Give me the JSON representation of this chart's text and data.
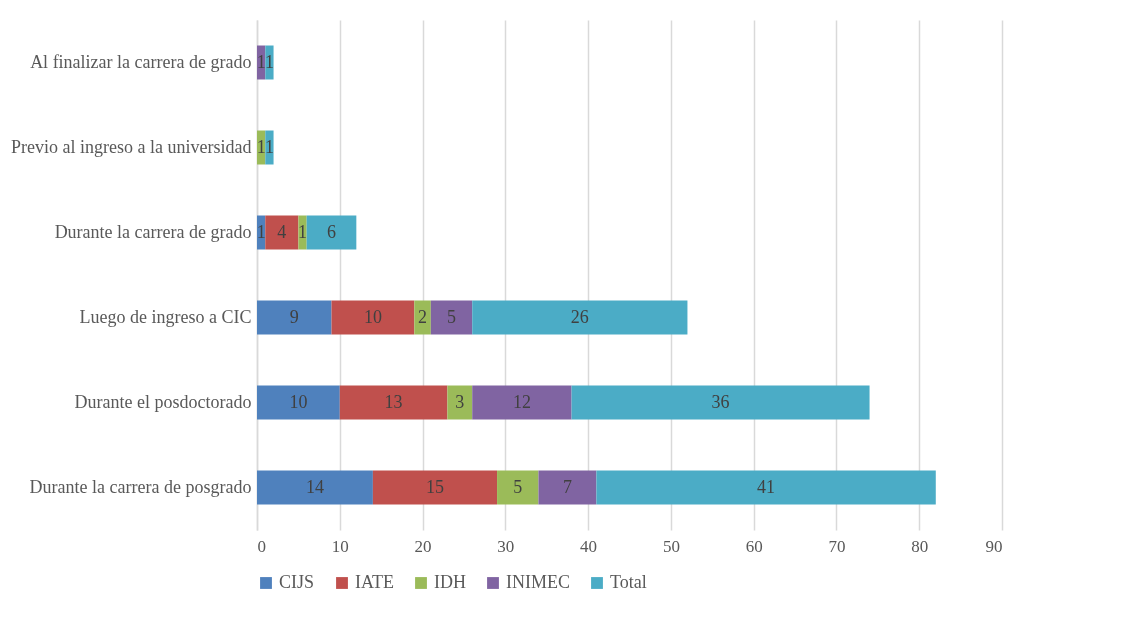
{
  "chart_data": {
    "type": "bar",
    "orientation": "horizontal",
    "stacked": true,
    "data_labels": true,
    "grid": "x",
    "legend": "bottom",
    "categories": [
      "Al finalizar la carrera de grado",
      "Previo al ingreso a la universidad",
      "Durante la carrera de grado",
      "Luego de ingreso a CIC",
      "Durante el posdoctorado",
      "Durante la carrera de posgrado"
    ],
    "series": [
      {
        "name": "CIJS",
        "color": "#4f81bd",
        "values": [
          null,
          null,
          1,
          9,
          10,
          14
        ]
      },
      {
        "name": "IATE",
        "color": "#c0504d",
        "values": [
          null,
          null,
          4,
          10,
          13,
          15
        ]
      },
      {
        "name": "IDH",
        "color": "#9bbb59",
        "values": [
          null,
          1,
          1,
          2,
          3,
          5
        ]
      },
      {
        "name": "INIMEC",
        "color": "#8064a2",
        "values": [
          1,
          null,
          null,
          5,
          12,
          7
        ]
      },
      {
        "name": "Total",
        "color": "#4bacc6",
        "values": [
          1,
          1,
          6,
          26,
          36,
          41
        ]
      }
    ],
    "xlim": [
      0,
      90
    ],
    "xticks": [
      0,
      10,
      20,
      30,
      40,
      50,
      60,
      70,
      80,
      90
    ]
  }
}
